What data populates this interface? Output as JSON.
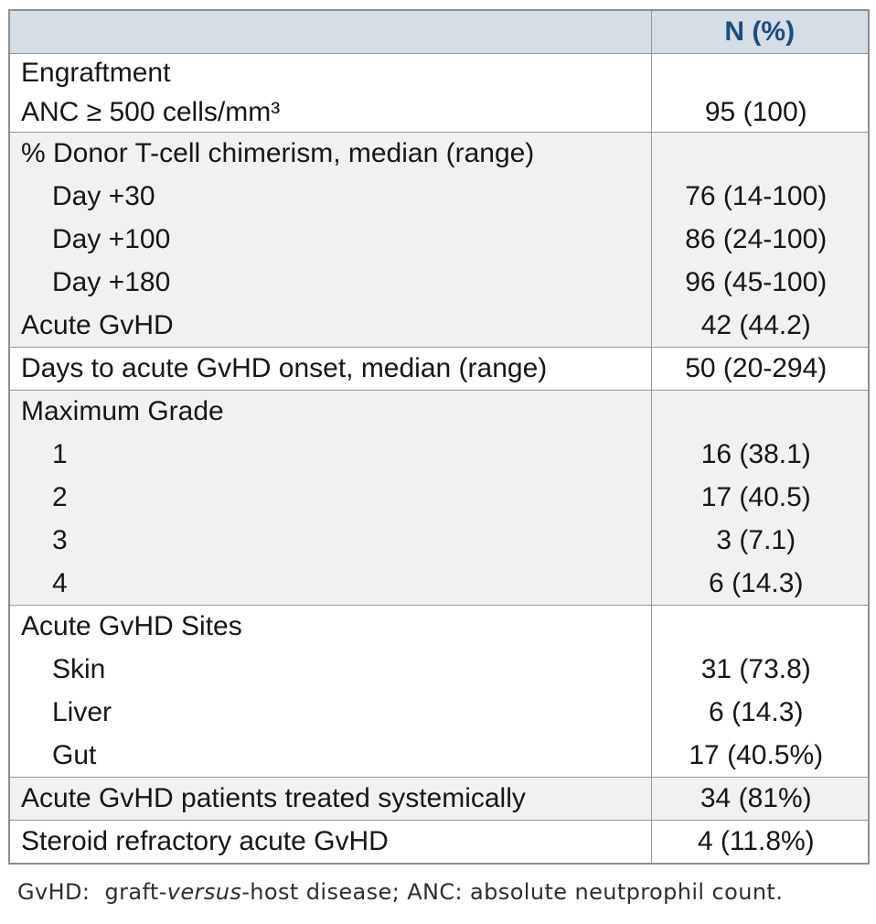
{
  "table": {
    "header": {
      "label_col": "",
      "value_col": "N (%)"
    },
    "sections": [
      {
        "shaded": false,
        "lines": [
          {
            "label": "Engraftment",
            "indent": false,
            "value": ""
          },
          {
            "label": "ANC ≥ 500 cells/mm³",
            "indent": false,
            "value": "95 (100)"
          }
        ]
      },
      {
        "shaded": true,
        "lines": [
          {
            "label": "% Donor T-cell chimerism, median (range)",
            "indent": false,
            "value": ""
          },
          {
            "label": "Day +30",
            "indent": true,
            "value": "76 (14-100)"
          },
          {
            "label": "Day +100",
            "indent": true,
            "value": "86 (24-100)"
          },
          {
            "label": "Day +180",
            "indent": true,
            "value": "96 (45-100)"
          },
          {
            "label": "Acute GvHD",
            "indent": false,
            "value": "42 (44.2)"
          }
        ]
      },
      {
        "shaded": false,
        "lines": [
          {
            "label": "Days to acute GvHD onset, median (range)",
            "indent": false,
            "value": "50 (20-294)"
          }
        ]
      },
      {
        "shaded": true,
        "lines": [
          {
            "label": "Maximum Grade",
            "indent": false,
            "value": ""
          },
          {
            "label": "1",
            "indent": true,
            "value": "16 (38.1)"
          },
          {
            "label": "2",
            "indent": true,
            "value": "17 (40.5)"
          },
          {
            "label": "3",
            "indent": true,
            "value": "3 (7.1)"
          },
          {
            "label": "4",
            "indent": true,
            "value": "6 (14.3)"
          }
        ]
      },
      {
        "shaded": false,
        "lines": [
          {
            "label": "Acute GvHD Sites",
            "indent": false,
            "value": ""
          },
          {
            "label": "Skin",
            "indent": true,
            "value": "31 (73.8)"
          },
          {
            "label": "Liver",
            "indent": true,
            "value": "6 (14.3)"
          },
          {
            "label": "Gut",
            "indent": true,
            "value": "17 (40.5%)"
          }
        ]
      },
      {
        "shaded": true,
        "lines": [
          {
            "label": "Acute GvHD patients treated systemically",
            "indent": false,
            "value": "34 (81%)"
          }
        ]
      },
      {
        "shaded": false,
        "lines": [
          {
            "label": "Steroid refractory acute GvHD",
            "indent": false,
            "value": "4 (11.8%)"
          }
        ]
      }
    ]
  },
  "footnote": {
    "prefix": "GvHD:  graft-",
    "italic": "versus",
    "suffix": "-host disease; ANC: absolute neutprophil count."
  },
  "colors": {
    "header_bg": "#d5dde6",
    "header_text": "#1c4e7d",
    "band_shaded": "#f1f1f0",
    "band_white": "#ffffff",
    "border": "#969696",
    "outer_border": "#8f8f8f"
  }
}
